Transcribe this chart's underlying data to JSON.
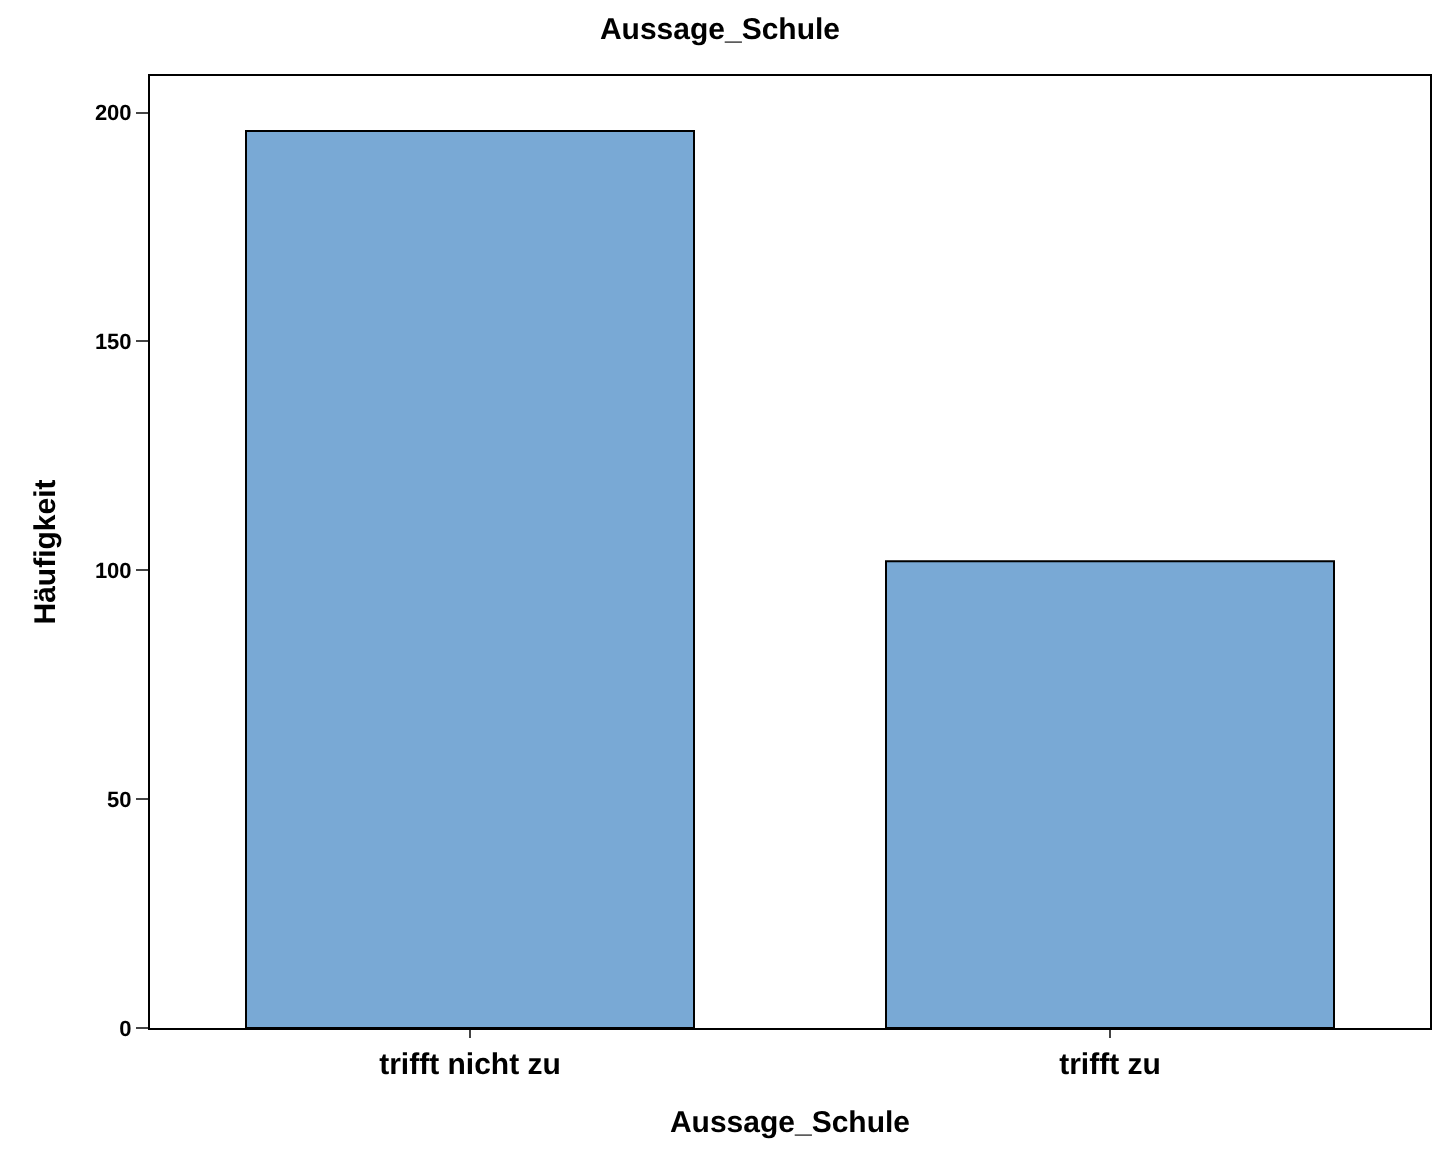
{
  "chart_data": {
    "type": "bar",
    "title": "Aussage_Schule",
    "xlabel": "Aussage_Schule",
    "ylabel": "Häufigkeit",
    "categories": [
      "trifft nicht zu",
      "trifft zu"
    ],
    "values": [
      196,
      102
    ],
    "color": "#79a9d5",
    "ylim": [
      0,
      208
    ],
    "yticks": [
      0,
      50,
      100,
      150,
      200
    ],
    "legend": false
  }
}
